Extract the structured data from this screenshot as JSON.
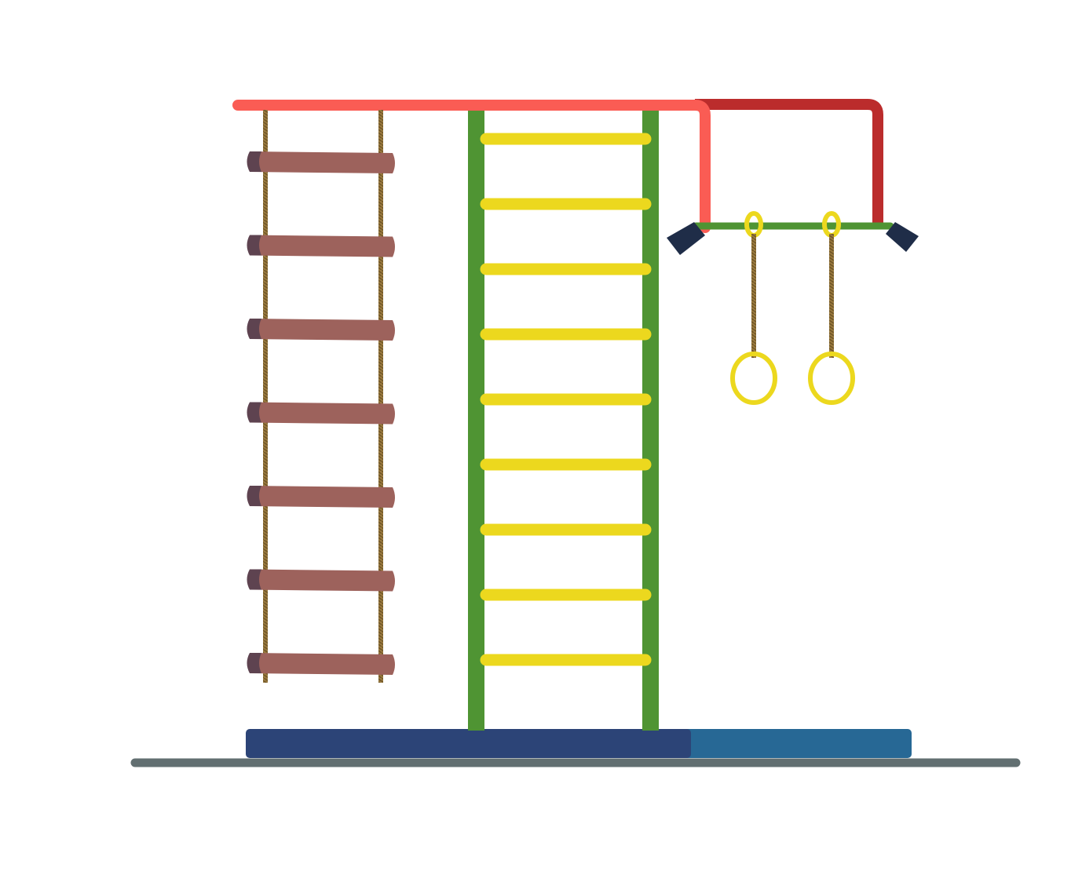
{
  "colors": {
    "background": "#ffffff",
    "top_bar": "#fa5c54",
    "top_bar_back": "#bb2c2c",
    "rope": "#9a7a3e",
    "rope_dark": "#6e5427",
    "plank": "#9d625c",
    "plank_end": "#5e4350",
    "wall_bar_rail": "#4f9433",
    "wall_bar_rung": "#ecd81e",
    "trapeze_bar": "#4f9433",
    "trapeze_cap": "#1f2d48",
    "ring": "#ecd81e",
    "mat_dark": "#2c4477",
    "mat_light": "#276895",
    "floor": "#626f71"
  },
  "rope_ladder": {
    "plank_count": 7
  },
  "wall_bars": {
    "rung_count": 9
  },
  "rings": {
    "count": 2
  }
}
